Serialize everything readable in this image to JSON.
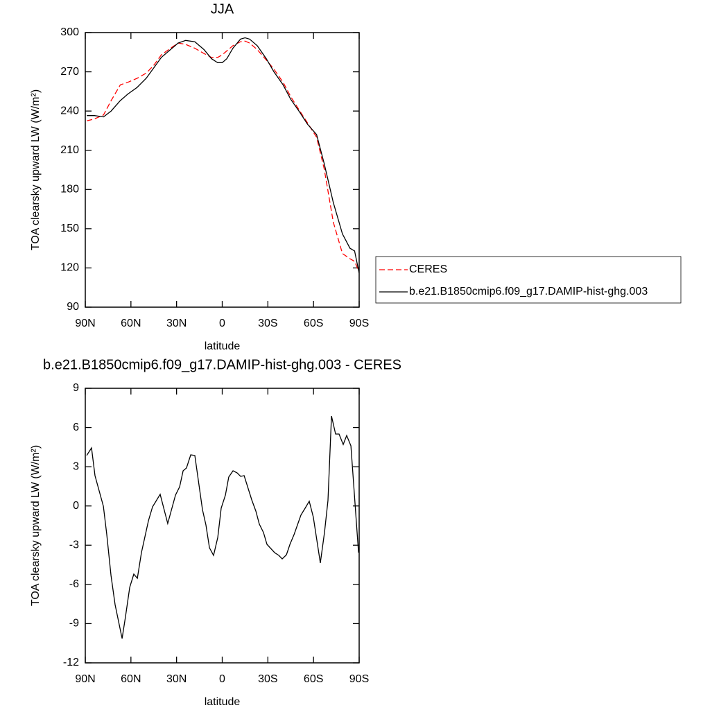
{
  "chart_data": [
    {
      "type": "line",
      "title": "JJA",
      "x_label": "latitude",
      "y_label": "TOA clearsky upward LW (W/m²)",
      "x": [
        89,
        84,
        78,
        73,
        67,
        62,
        56,
        50,
        45,
        40,
        34,
        29,
        24,
        18,
        12,
        7,
        3,
        0,
        -3,
        -7,
        -12,
        -15,
        -18,
        -23,
        -29,
        -34,
        -40,
        -45,
        -51,
        -56,
        -62,
        -67,
        -73,
        -79,
        -84,
        -87,
        -90
      ],
      "series": [
        {
          "name": "CERES",
          "color": "#ff0000",
          "line_style": "dashed",
          "values": [
            232.5,
            234,
            237,
            248,
            260,
            262,
            265,
            269,
            275,
            283,
            288,
            292,
            291,
            288,
            284,
            281,
            281,
            283,
            286,
            290,
            293,
            293.5,
            292,
            287,
            279,
            272,
            262,
            251,
            240,
            231,
            220,
            196,
            155,
            131,
            127,
            125,
            117
          ]
        },
        {
          "name": "b.e21.B1850cmip6.f09_g17.DAMIP-hist-ghg.003",
          "color": "#000000",
          "line_style": "solid",
          "values": [
            236.5,
            236.5,
            235.5,
            240,
            248,
            253,
            258,
            265,
            273,
            281,
            287,
            292,
            294,
            293,
            287,
            280,
            277,
            277,
            280,
            288,
            295,
            296,
            295,
            290,
            280,
            270,
            260,
            249,
            239,
            230,
            222,
            200,
            170,
            146,
            135,
            133,
            116
          ]
        }
      ],
      "xlim": [
        90,
        -90
      ],
      "xticks": [
        {
          "value": 90,
          "label": "90N"
        },
        {
          "value": 60,
          "label": "60N"
        },
        {
          "value": 30,
          "label": "30N"
        },
        0,
        {
          "value": -30,
          "label": "30S"
        },
        {
          "value": -60,
          "label": "60S"
        },
        {
          "value": -90,
          "label": "90S"
        }
      ],
      "ylim": [
        90,
        300
      ],
      "yticks": [
        90,
        120,
        150,
        180,
        210,
        240,
        270,
        300
      ],
      "legend": "right"
    },
    {
      "type": "line",
      "title": "b.e21.B1850cmip6.f09_g17.DAMIP-hist-ghg.003 - CERES",
      "x_label": "latitude",
      "y_label": "TOA clearsky upward LW (W/m²)",
      "x": [
        89.1,
        85.9,
        83.6,
        78.1,
        75.9,
        73.1,
        70.4,
        65.8,
        63.6,
        60.8,
        58.1,
        55.8,
        53.1,
        48.5,
        45.8,
        40.8,
        35.8,
        30.7,
        28.0,
        25.7,
        23.5,
        20.7,
        18.0,
        13.0,
        10.7,
        8.4,
        5.7,
        2.9,
        0.7,
        -2.1,
        -4.3,
        -7.1,
        -9.8,
        -12.1,
        -14.4,
        -19.4,
        -22.1,
        -24.4,
        -27.1,
        -29.4,
        -34.4,
        -37.2,
        -39.4,
        -42.2,
        -44.5,
        -47.2,
        -51.7,
        -54.5,
        -57.2,
        -59.9,
        -64.5,
        -67.2,
        -69.5,
        -71.8,
        -74.5,
        -76.8,
        -79.5,
        -81.8,
        -84.6,
        -89.6
      ],
      "values": [
        3.86,
        4.44,
        2.32,
        -0.02,
        -2.14,
        -5.32,
        -7.55,
        -10.14,
        -8.5,
        -6.22,
        -5.21,
        -5.53,
        -3.57,
        -1.13,
        -0.07,
        0.89,
        -1.34,
        0.83,
        1.47,
        2.69,
        2.9,
        3.91,
        3.86,
        -0.28,
        -1.45,
        -3.2,
        -3.78,
        -2.4,
        -0.17,
        0.83,
        2.21,
        2.69,
        2.53,
        2.26,
        2.32,
        0.46,
        -0.39,
        -1.39,
        -2.03,
        -2.93,
        -3.57,
        -3.78,
        -4.05,
        -3.73,
        -2.93,
        -2.19,
        -0.7,
        -0.17,
        0.36,
        -0.86,
        -4.36,
        -2.03,
        0.41,
        6.88,
        5.5,
        5.5,
        4.7,
        5.39,
        4.6,
        -3.57
      ],
      "color": "#000000",
      "xlim": [
        90,
        -90
      ],
      "xticks": [
        {
          "value": 90,
          "label": "90N"
        },
        {
          "value": 60,
          "label": "60N"
        },
        {
          "value": 30,
          "label": "30N"
        },
        0,
        {
          "value": -30,
          "label": "30S"
        },
        {
          "value": -60,
          "label": "60S"
        },
        {
          "value": -90,
          "label": "90S"
        }
      ],
      "ylim": [
        -12,
        9
      ],
      "yticks": [
        -12,
        -9,
        -6,
        -3,
        0,
        3,
        6,
        9
      ]
    }
  ]
}
